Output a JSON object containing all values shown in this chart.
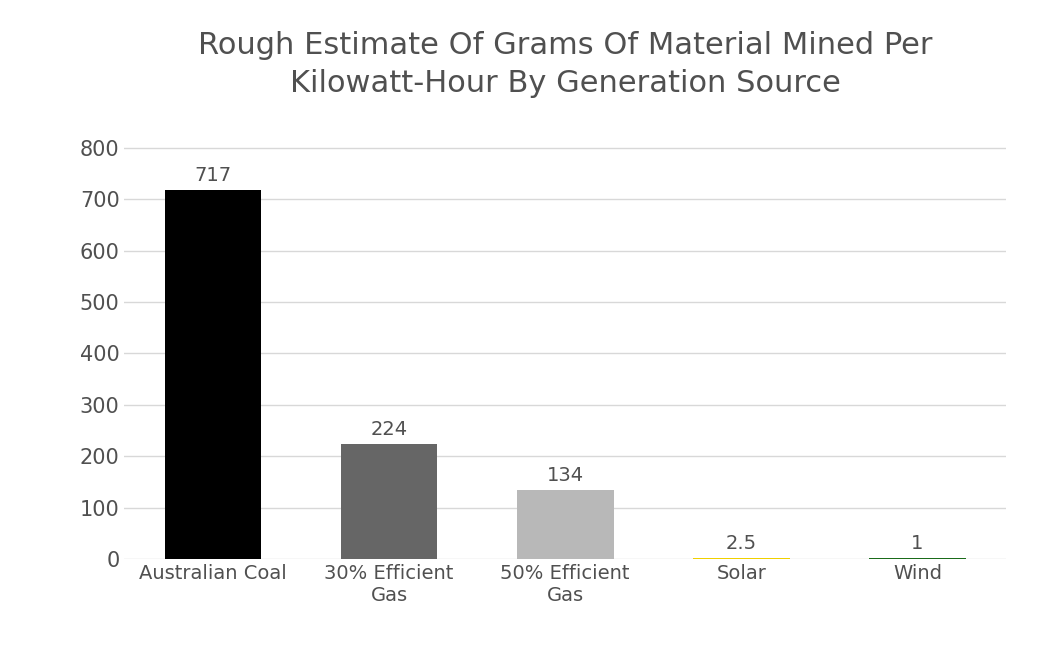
{
  "categories": [
    "Australian Coal",
    "30% Efficient\nGas",
    "50% Efficient\nGas",
    "Solar",
    "Wind"
  ],
  "values": [
    717,
    224,
    134,
    2.5,
    1
  ],
  "bar_colors": [
    "#000000",
    "#666666",
    "#b8b8b8",
    "#f0d000",
    "#1a6b1a"
  ],
  "title": "Rough Estimate Of Grams Of Material Mined Per\nKilowatt-Hour By Generation Source",
  "title_color": "#505050",
  "title_fontsize": 22,
  "ylim": [
    0,
    860
  ],
  "yticks": [
    0,
    100,
    200,
    300,
    400,
    500,
    600,
    700,
    800
  ],
  "bar_width": 0.55,
  "background_color": "#ffffff",
  "grid_color": "#d8d8d8",
  "label_fontsize": 14,
  "tick_fontsize": 15,
  "annotation_fontsize": 14,
  "annotation_color": "#505050",
  "tick_color": "#505050"
}
